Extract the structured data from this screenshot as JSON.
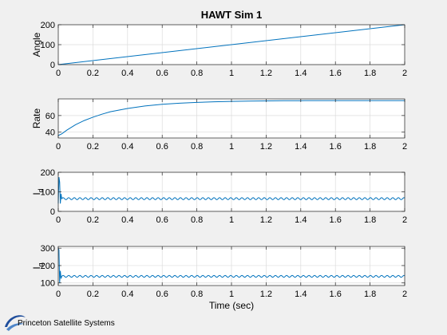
{
  "figure": {
    "title": "HAWT Sim 1",
    "background": "#f0f0f0",
    "axes_color": "#262626",
    "grid_color": "#dcdcdc",
    "line_color": "#0072bd"
  },
  "chart_data": [
    {
      "type": "line",
      "title": "HAWT Sim 1",
      "xlabel": "",
      "ylabel": "Angle",
      "xlim": [
        0,
        2
      ],
      "ylim": [
        0,
        200
      ],
      "xticks": [
        0,
        0.2,
        0.4,
        0.6,
        0.8,
        1,
        1.2,
        1.4,
        1.6,
        1.8,
        2
      ],
      "xtick_labels": [
        "0",
        "0.2",
        "0.4",
        "0.6",
        "0.8",
        "1",
        "1.2",
        "1.4",
        "1.6",
        "1.8",
        "2"
      ],
      "yticks": [
        0,
        100,
        200
      ],
      "ytick_labels": [
        "0",
        "100",
        "200"
      ],
      "grid": true,
      "series": [
        {
          "x": [
            0,
            2
          ],
          "y": [
            0,
            200
          ]
        }
      ]
    },
    {
      "type": "line",
      "xlabel": "",
      "ylabel": "Rate",
      "xlim": [
        0,
        2
      ],
      "ylim": [
        33,
        80
      ],
      "xticks": [
        0,
        0.2,
        0.4,
        0.6,
        0.8,
        1,
        1.2,
        1.4,
        1.6,
        1.8,
        2
      ],
      "xtick_labels": [
        "0",
        "0.2",
        "0.4",
        "0.6",
        "0.8",
        "1",
        "1.2",
        "1.4",
        "1.6",
        "1.8",
        "2"
      ],
      "yticks": [
        40,
        60
      ],
      "ytick_labels": [
        "40",
        "60"
      ],
      "grid": true,
      "series": [
        {
          "x": [
            0,
            0.02,
            0.05,
            0.1,
            0.15,
            0.2,
            0.25,
            0.3,
            0.4,
            0.5,
            0.6,
            0.7,
            0.8,
            0.9,
            1.0,
            1.1,
            1.2,
            1.3,
            1.4,
            1.5,
            1.6,
            1.7,
            1.8,
            1.9,
            2.0
          ],
          "y": [
            36,
            38,
            42.5,
            49,
            54,
            58,
            61.5,
            64.5,
            68.5,
            71.5,
            73.5,
            74.8,
            75.8,
            76.5,
            77.0,
            77.4,
            77.6,
            77.8,
            77.9,
            78.0,
            78.0,
            78.0,
            78.0,
            78.0,
            78.0
          ]
        }
      ]
    },
    {
      "type": "line",
      "xlabel": "",
      "ylabel": "I_d",
      "xlim": [
        0,
        2
      ],
      "ylim": [
        0,
        200
      ],
      "xticks": [
        0,
        0.2,
        0.4,
        0.6,
        0.8,
        1,
        1.2,
        1.4,
        1.6,
        1.8,
        2
      ],
      "xtick_labels": [
        "0",
        "0.2",
        "0.4",
        "0.6",
        "0.8",
        "1",
        "1.2",
        "1.4",
        "1.6",
        "1.8",
        "2"
      ],
      "yticks": [
        0,
        100,
        200
      ],
      "ytick_labels": [
        "0",
        "100",
        "200"
      ],
      "grid": true,
      "series": [
        {
          "steady": 65,
          "ripple_amplitude": 5,
          "ripple_cycles": 62,
          "transient": [
            [
              0,
              40
            ],
            [
              0.004,
              175
            ],
            [
              0.008,
              150
            ],
            [
              0.012,
              40
            ],
            [
              0.016,
              90
            ],
            [
              0.02,
              65
            ]
          ]
        }
      ]
    },
    {
      "type": "line",
      "xlabel": "Time (sec)",
      "ylabel": "I_q",
      "xlim": [
        0,
        2
      ],
      "ylim": [
        85,
        310
      ],
      "xticks": [
        0,
        0.2,
        0.4,
        0.6,
        0.8,
        1,
        1.2,
        1.4,
        1.6,
        1.8,
        2
      ],
      "xtick_labels": [
        "0",
        "0.2",
        "0.4",
        "0.6",
        "0.8",
        "1",
        "1.2",
        "1.4",
        "1.6",
        "1.8",
        "2"
      ],
      "yticks": [
        100,
        200,
        300
      ],
      "ytick_labels": [
        "100",
        "200",
        "300"
      ],
      "grid": true,
      "series": [
        {
          "steady": 138,
          "ripple_amplitude": 5,
          "ripple_cycles": 62,
          "transient": [
            [
              0,
              300
            ],
            [
              0.004,
              290
            ],
            [
              0.008,
              100
            ],
            [
              0.012,
              170
            ],
            [
              0.016,
              125
            ],
            [
              0.02,
              138
            ]
          ]
        }
      ]
    }
  ],
  "logo": {
    "text": "Princeton Satellite Systems",
    "icon": "pss-swoosh-icon",
    "color": "#1f4e9c"
  }
}
